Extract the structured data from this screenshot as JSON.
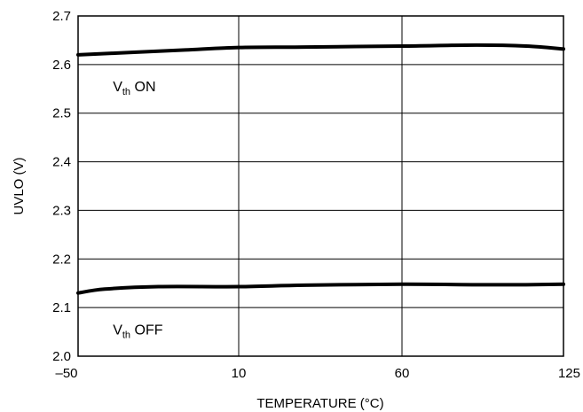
{
  "chart_data": {
    "type": "line",
    "title": "",
    "xlabel": "TEMPERATURE (°C)",
    "ylabel": "UVLO (V)",
    "xlim": [
      -50,
      125
    ],
    "ylim": [
      2.0,
      2.7
    ],
    "x_ticks": [
      -50,
      10,
      60,
      125
    ],
    "x_tick_labels": [
      "–50",
      "10",
      "60",
      "125"
    ],
    "y_ticks": [
      2.0,
      2.1,
      2.2,
      2.3,
      2.4,
      2.5,
      2.6,
      2.7
    ],
    "y_tick_labels": [
      "2.0",
      "2.1",
      "2.2",
      "2.3",
      "2.4",
      "2.5",
      "2.6",
      "2.7"
    ],
    "grid": true,
    "series": [
      {
        "x": [
          -50,
          -30,
          -10,
          10,
          30,
          60,
          90,
          110,
          125
        ],
        "values": [
          2.62,
          2.625,
          2.63,
          2.635,
          2.636,
          2.638,
          2.64,
          2.638,
          2.632
        ]
      },
      {
        "x": [
          -50,
          -40,
          -20,
          10,
          30,
          60,
          90,
          110,
          125
        ],
        "values": [
          2.13,
          2.138,
          2.143,
          2.143,
          2.146,
          2.148,
          2.147,
          2.147,
          2.148
        ]
      }
    ],
    "annotations": [
      {
        "main": "V",
        "sub": "th",
        "rest": " ON",
        "x": -37,
        "y": 2.545
      },
      {
        "main": "V",
        "sub": "th",
        "rest": " OFF",
        "x": -37,
        "y": 2.045
      }
    ]
  }
}
